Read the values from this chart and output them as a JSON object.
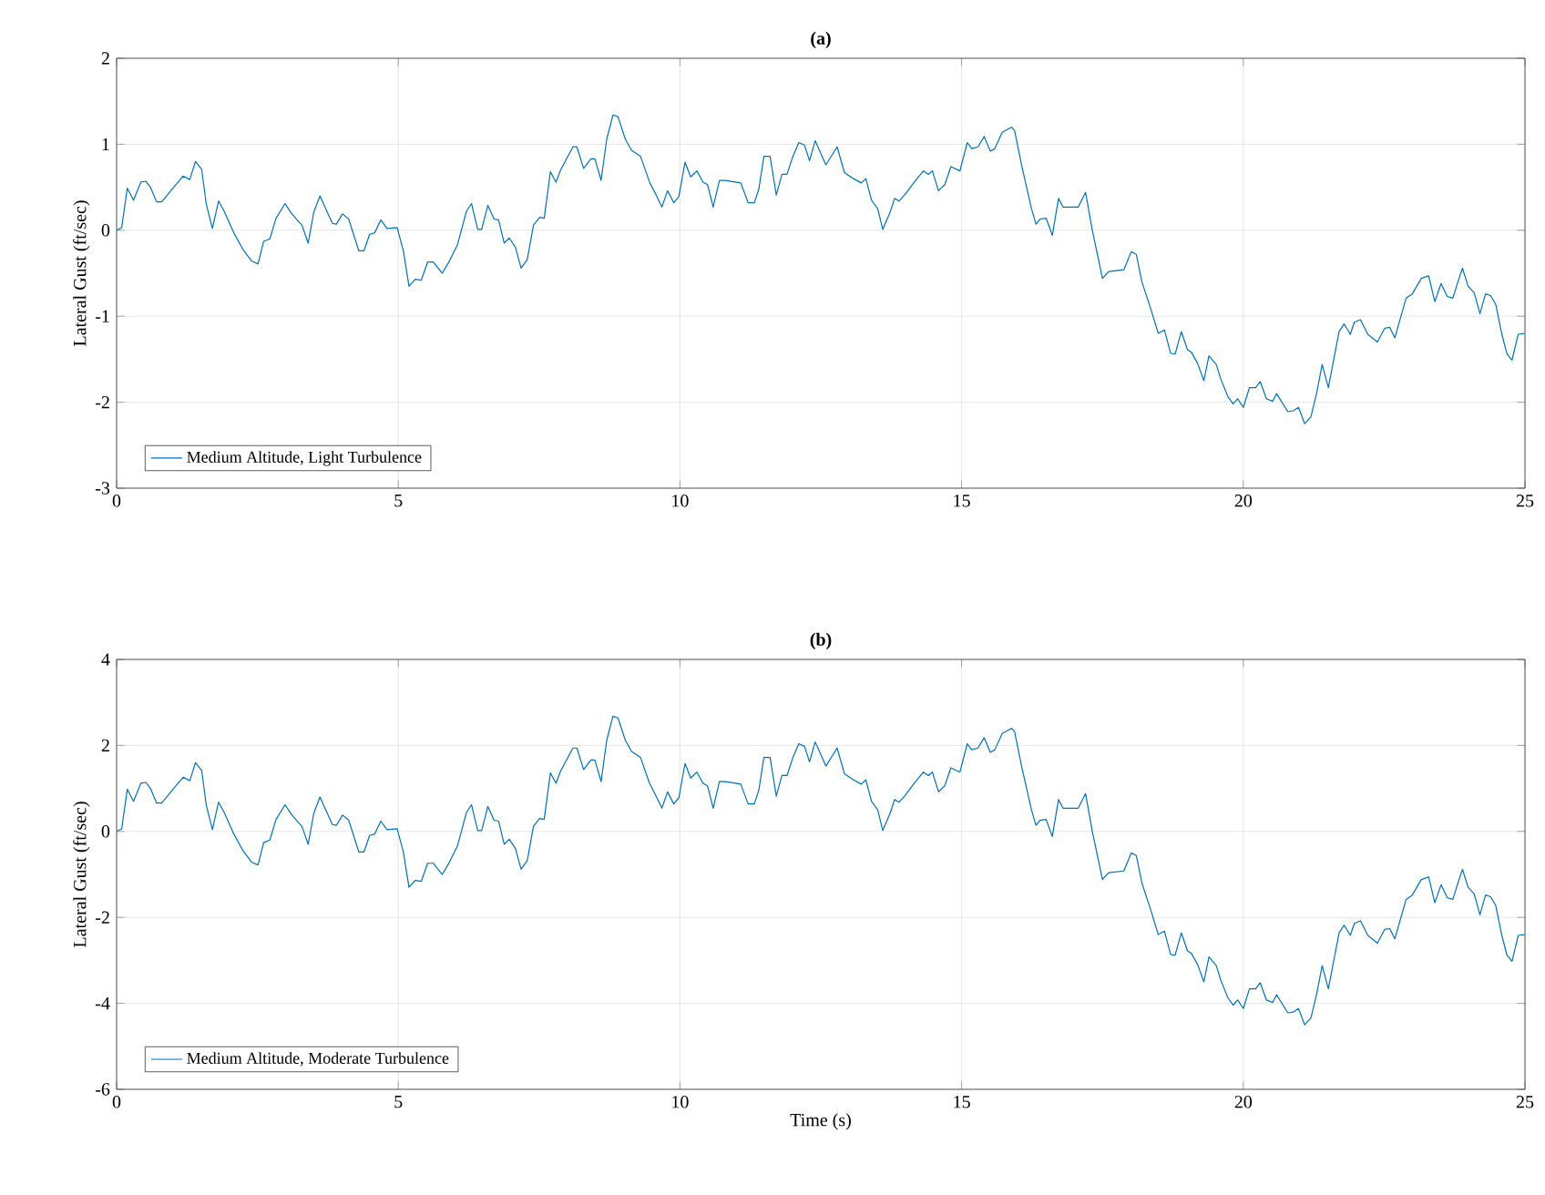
{
  "chart_data": [
    {
      "type": "line",
      "title": "(a)",
      "ylabel": "Lateral Gust (ft/sec)",
      "xlim": [
        0,
        25
      ],
      "ylim": [
        -3,
        2
      ],
      "xticks": [
        0,
        5,
        10,
        15,
        20,
        25
      ],
      "yticks": [
        -3,
        -2,
        -1,
        0,
        1,
        2
      ],
      "grid": true,
      "legend": "bottom left",
      "marker": "none",
      "line_style": "solid",
      "x": [
        0,
        0.09,
        0.19,
        0.3,
        0.43,
        0.52,
        0.6,
        0.71,
        0.8,
        0.99,
        1.18,
        1.3,
        1.4,
        1.51,
        1.59,
        1.7,
        1.81,
        1.91,
        2.08,
        2.24,
        2.4,
        2.51,
        2.61,
        2.72,
        2.83,
        2.99,
        3.1,
        3.23,
        3.29,
        3.4,
        3.5,
        3.61,
        3.72,
        3.83,
        3.9,
        4.01,
        4.12,
        4.3,
        4.39,
        4.49,
        4.58,
        4.69,
        4.8,
        4.98,
        5.09,
        5.19,
        5.3,
        5.41,
        5.52,
        5.62,
        5.78,
        5.89,
        6.05,
        6.21,
        6.3,
        6.41,
        6.48,
        6.59,
        6.7,
        6.78,
        6.88,
        6.97,
        7.08,
        7.18,
        7.29,
        7.4,
        7.51,
        7.59,
        7.7,
        7.8,
        7.88,
        8.1,
        8.17,
        8.29,
        8.42,
        8.49,
        8.6,
        8.7,
        8.81,
        8.9,
        9.03,
        9.14,
        9.3,
        9.46,
        9.57,
        9.68,
        9.78,
        9.89,
        9.98,
        10.09,
        10.19,
        10.3,
        10.41,
        10.49,
        10.59,
        10.7,
        10.81,
        11.08,
        11.21,
        11.32,
        11.4,
        11.49,
        11.6,
        11.71,
        11.81,
        11.9,
        12.0,
        12.11,
        12.21,
        12.3,
        12.4,
        12.51,
        12.59,
        12.79,
        12.92,
        13.08,
        13.22,
        13.3,
        13.4,
        13.51,
        13.6,
        13.73,
        13.81,
        13.89,
        14.0,
        14.16,
        14.32,
        14.41,
        14.48,
        14.59,
        14.7,
        14.81,
        14.97,
        15.1,
        15.18,
        15.29,
        15.4,
        15.51,
        15.59,
        15.72,
        15.89,
        15.94,
        16.07,
        16.24,
        16.32,
        16.39,
        16.5,
        16.61,
        16.72,
        16.8,
        17.07,
        17.2,
        17.32,
        17.5,
        17.61,
        17.88,
        18.01,
        18.1,
        18.2,
        18.36,
        18.49,
        18.6,
        18.71,
        18.79,
        18.9,
        19.01,
        19.08,
        19.19,
        19.3,
        19.39,
        19.52,
        19.6,
        19.73,
        19.82,
        19.9,
        20.0,
        20.11,
        20.22,
        20.3,
        20.41,
        20.52,
        20.59,
        20.79,
        20.89,
        20.98,
        21.09,
        21.2,
        21.3,
        21.4,
        21.51,
        21.7,
        21.79,
        21.9,
        21.97,
        22.08,
        22.21,
        22.38,
        22.51,
        22.6,
        22.69,
        22.89,
        23.0,
        23.16,
        23.29,
        23.4,
        23.51,
        23.62,
        23.72,
        23.8,
        23.89,
        23.99,
        24.1,
        24.2,
        24.3,
        24.39,
        24.48,
        24.59,
        24.68,
        24.77,
        24.88,
        24.99
      ],
      "series": [
        {
          "name": "Medium Altitude, Light Turbulence",
          "color": "#0072bd",
          "values": [
            0,
            0.03,
            0.49,
            0.35,
            0.56,
            0.57,
            0.5,
            0.33,
            0.33,
            0.48,
            0.63,
            0.59,
            0.8,
            0.71,
            0.31,
            0.02,
            0.34,
            0.22,
            -0.03,
            -0.22,
            -0.36,
            -0.39,
            -0.13,
            -0.1,
            0.14,
            0.31,
            0.2,
            0.1,
            0.06,
            -0.15,
            0.21,
            0.4,
            0.24,
            0.08,
            0.07,
            0.19,
            0.13,
            -0.24,
            -0.24,
            -0.05,
            -0.03,
            0.12,
            0.02,
            0.03,
            -0.24,
            -0.65,
            -0.57,
            -0.58,
            -0.37,
            -0.37,
            -0.5,
            -0.38,
            -0.17,
            0.22,
            0.31,
            0.01,
            0.01,
            0.29,
            0.13,
            0.12,
            -0.15,
            -0.09,
            -0.2,
            -0.44,
            -0.34,
            0.06,
            0.15,
            0.14,
            0.68,
            0.56,
            0.7,
            0.97,
            0.97,
            0.72,
            0.83,
            0.83,
            0.58,
            1.06,
            1.34,
            1.32,
            1.06,
            0.93,
            0.86,
            0.56,
            0.42,
            0.27,
            0.46,
            0.32,
            0.39,
            0.79,
            0.62,
            0.69,
            0.56,
            0.53,
            0.27,
            0.58,
            0.58,
            0.55,
            0.32,
            0.32,
            0.48,
            0.86,
            0.86,
            0.41,
            0.65,
            0.65,
            0.85,
            1.02,
            0.99,
            0.81,
            1.04,
            0.88,
            0.76,
            0.97,
            0.67,
            0.6,
            0.55,
            0.6,
            0.35,
            0.25,
            0.01,
            0.21,
            0.37,
            0.34,
            0.42,
            0.56,
            0.69,
            0.65,
            0.69,
            0.46,
            0.53,
            0.74,
            0.69,
            1.02,
            0.95,
            0.97,
            1.09,
            0.92,
            0.95,
            1.14,
            1.2,
            1.16,
            0.74,
            0.25,
            0.07,
            0.13,
            0.14,
            -0.06,
            0.37,
            0.27,
            0.27,
            0.44,
            0,
            -0.56,
            -0.48,
            -0.46,
            -0.25,
            -0.28,
            -0.6,
            -0.92,
            -1.2,
            -1.16,
            -1.43,
            -1.44,
            -1.18,
            -1.39,
            -1.42,
            -1.55,
            -1.75,
            -1.46,
            -1.56,
            -1.73,
            -1.94,
            -2.02,
            -1.96,
            -2.06,
            -1.83,
            -1.83,
            -1.76,
            -1.96,
            -1.99,
            -1.9,
            -2.11,
            -2.1,
            -2.06,
            -2.25,
            -2.17,
            -1.9,
            -1.56,
            -1.83,
            -1.18,
            -1.09,
            -1.21,
            -1.07,
            -1.04,
            -1.21,
            -1.3,
            -1.14,
            -1.13,
            -1.25,
            -0.79,
            -0.74,
            -0.56,
            -0.53,
            -0.83,
            -0.62,
            -0.77,
            -0.79,
            -0.62,
            -0.44,
            -0.65,
            -0.73,
            -0.97,
            -0.74,
            -0.76,
            -0.86,
            -1.21,
            -1.44,
            -1.51,
            -1.21,
            -1.2
          ]
        }
      ]
    },
    {
      "type": "line",
      "title": "(b)",
      "xlabel": "Time (s)",
      "ylabel": "Lateral Gust (ft/sec)",
      "xlim": [
        0,
        25
      ],
      "ylim": [
        -6,
        4
      ],
      "xticks": [
        0,
        5,
        10,
        15,
        20,
        25
      ],
      "yticks": [
        -6,
        -4,
        -2,
        0,
        2,
        4
      ],
      "grid": true,
      "legend": "bottom left",
      "marker": "none",
      "line_style": "solid",
      "x": [
        0,
        0.09,
        0.19,
        0.3,
        0.43,
        0.52,
        0.6,
        0.71,
        0.8,
        0.99,
        1.18,
        1.3,
        1.4,
        1.51,
        1.59,
        1.7,
        1.81,
        1.91,
        2.08,
        2.24,
        2.4,
        2.51,
        2.61,
        2.72,
        2.83,
        2.99,
        3.1,
        3.23,
        3.29,
        3.4,
        3.5,
        3.61,
        3.72,
        3.83,
        3.9,
        4.01,
        4.12,
        4.3,
        4.39,
        4.49,
        4.58,
        4.69,
        4.8,
        4.98,
        5.09,
        5.19,
        5.3,
        5.41,
        5.52,
        5.62,
        5.78,
        5.89,
        6.05,
        6.21,
        6.3,
        6.41,
        6.48,
        6.59,
        6.7,
        6.78,
        6.88,
        6.97,
        7.08,
        7.18,
        7.29,
        7.4,
        7.51,
        7.59,
        7.7,
        7.8,
        7.88,
        8.1,
        8.17,
        8.29,
        8.42,
        8.49,
        8.6,
        8.7,
        8.81,
        8.9,
        9.03,
        9.14,
        9.3,
        9.46,
        9.57,
        9.68,
        9.78,
        9.89,
        9.98,
        10.09,
        10.19,
        10.3,
        10.41,
        10.49,
        10.59,
        10.7,
        10.81,
        11.08,
        11.21,
        11.32,
        11.4,
        11.49,
        11.6,
        11.71,
        11.81,
        11.9,
        12.0,
        12.11,
        12.21,
        12.3,
        12.4,
        12.51,
        12.59,
        12.79,
        12.92,
        13.08,
        13.22,
        13.3,
        13.4,
        13.51,
        13.6,
        13.73,
        13.81,
        13.89,
        14.0,
        14.16,
        14.32,
        14.41,
        14.48,
        14.59,
        14.7,
        14.81,
        14.97,
        15.1,
        15.18,
        15.29,
        15.4,
        15.51,
        15.59,
        15.72,
        15.89,
        15.94,
        16.07,
        16.24,
        16.32,
        16.39,
        16.5,
        16.61,
        16.72,
        16.8,
        17.07,
        17.2,
        17.32,
        17.5,
        17.61,
        17.88,
        18.01,
        18.1,
        18.2,
        18.36,
        18.49,
        18.6,
        18.71,
        18.79,
        18.9,
        19.01,
        19.08,
        19.19,
        19.3,
        19.39,
        19.52,
        19.6,
        19.73,
        19.82,
        19.9,
        20.0,
        20.11,
        20.22,
        20.3,
        20.41,
        20.52,
        20.59,
        20.79,
        20.89,
        20.98,
        21.09,
        21.2,
        21.3,
        21.4,
        21.51,
        21.7,
        21.79,
        21.9,
        21.97,
        22.08,
        22.21,
        22.38,
        22.51,
        22.6,
        22.69,
        22.89,
        23.0,
        23.16,
        23.29,
        23.4,
        23.51,
        23.62,
        23.72,
        23.8,
        23.89,
        23.99,
        24.1,
        24.2,
        24.3,
        24.39,
        24.48,
        24.59,
        24.68,
        24.77,
        24.88,
        24.99
      ],
      "series": [
        {
          "name": "Medium Altitude, Moderate Turbulence",
          "color": "#0072bd",
          "values": [
            0,
            0.06,
            0.98,
            0.7,
            1.12,
            1.14,
            1.0,
            0.66,
            0.66,
            0.96,
            1.26,
            1.18,
            1.6,
            1.42,
            0.62,
            0.04,
            0.68,
            0.44,
            -0.06,
            -0.44,
            -0.72,
            -0.78,
            -0.26,
            -0.2,
            0.28,
            0.62,
            0.4,
            0.2,
            0.12,
            -0.3,
            0.42,
            0.8,
            0.48,
            0.16,
            0.14,
            0.38,
            0.26,
            -0.48,
            -0.48,
            -0.1,
            -0.06,
            0.24,
            0.04,
            0.06,
            -0.48,
            -1.3,
            -1.14,
            -1.16,
            -0.74,
            -0.74,
            -1.0,
            -0.76,
            -0.34,
            0.44,
            0.62,
            0.02,
            0.02,
            0.58,
            0.26,
            0.24,
            -0.3,
            -0.18,
            -0.4,
            -0.88,
            -0.68,
            0.12,
            0.3,
            0.28,
            1.36,
            1.12,
            1.4,
            1.94,
            1.94,
            1.44,
            1.66,
            1.66,
            1.16,
            2.12,
            2.68,
            2.64,
            2.12,
            1.86,
            1.72,
            1.12,
            0.84,
            0.54,
            0.92,
            0.64,
            0.78,
            1.58,
            1.24,
            1.38,
            1.12,
            1.06,
            0.54,
            1.16,
            1.16,
            1.1,
            0.64,
            0.64,
            0.96,
            1.72,
            1.72,
            0.82,
            1.3,
            1.3,
            1.7,
            2.04,
            1.98,
            1.62,
            2.08,
            1.76,
            1.52,
            1.94,
            1.34,
            1.2,
            1.1,
            1.2,
            0.7,
            0.5,
            0.02,
            0.42,
            0.74,
            0.68,
            0.84,
            1.12,
            1.38,
            1.3,
            1.38,
            0.92,
            1.06,
            1.48,
            1.38,
            2.04,
            1.9,
            1.94,
            2.18,
            1.84,
            1.9,
            2.28,
            2.4,
            2.32,
            1.48,
            0.5,
            0.14,
            0.26,
            0.28,
            -0.12,
            0.74,
            0.54,
            0.54,
            0.88,
            0,
            -1.12,
            -0.96,
            -0.92,
            -0.5,
            -0.56,
            -1.2,
            -1.84,
            -2.4,
            -2.32,
            -2.86,
            -2.88,
            -2.36,
            -2.78,
            -2.84,
            -3.1,
            -3.5,
            -2.92,
            -3.12,
            -3.46,
            -3.88,
            -4.04,
            -3.92,
            -4.12,
            -3.66,
            -3.66,
            -3.52,
            -3.92,
            -3.98,
            -3.8,
            -4.22,
            -4.2,
            -4.12,
            -4.5,
            -4.34,
            -3.8,
            -3.12,
            -3.66,
            -2.36,
            -2.18,
            -2.42,
            -2.14,
            -2.08,
            -2.42,
            -2.6,
            -2.28,
            -2.26,
            -2.5,
            -1.58,
            -1.48,
            -1.12,
            -1.06,
            -1.66,
            -1.24,
            -1.54,
            -1.58,
            -1.24,
            -0.88,
            -1.3,
            -1.46,
            -1.94,
            -1.48,
            -1.52,
            -1.72,
            -2.42,
            -2.88,
            -3.02,
            -2.42,
            -2.4
          ]
        }
      ]
    }
  ]
}
